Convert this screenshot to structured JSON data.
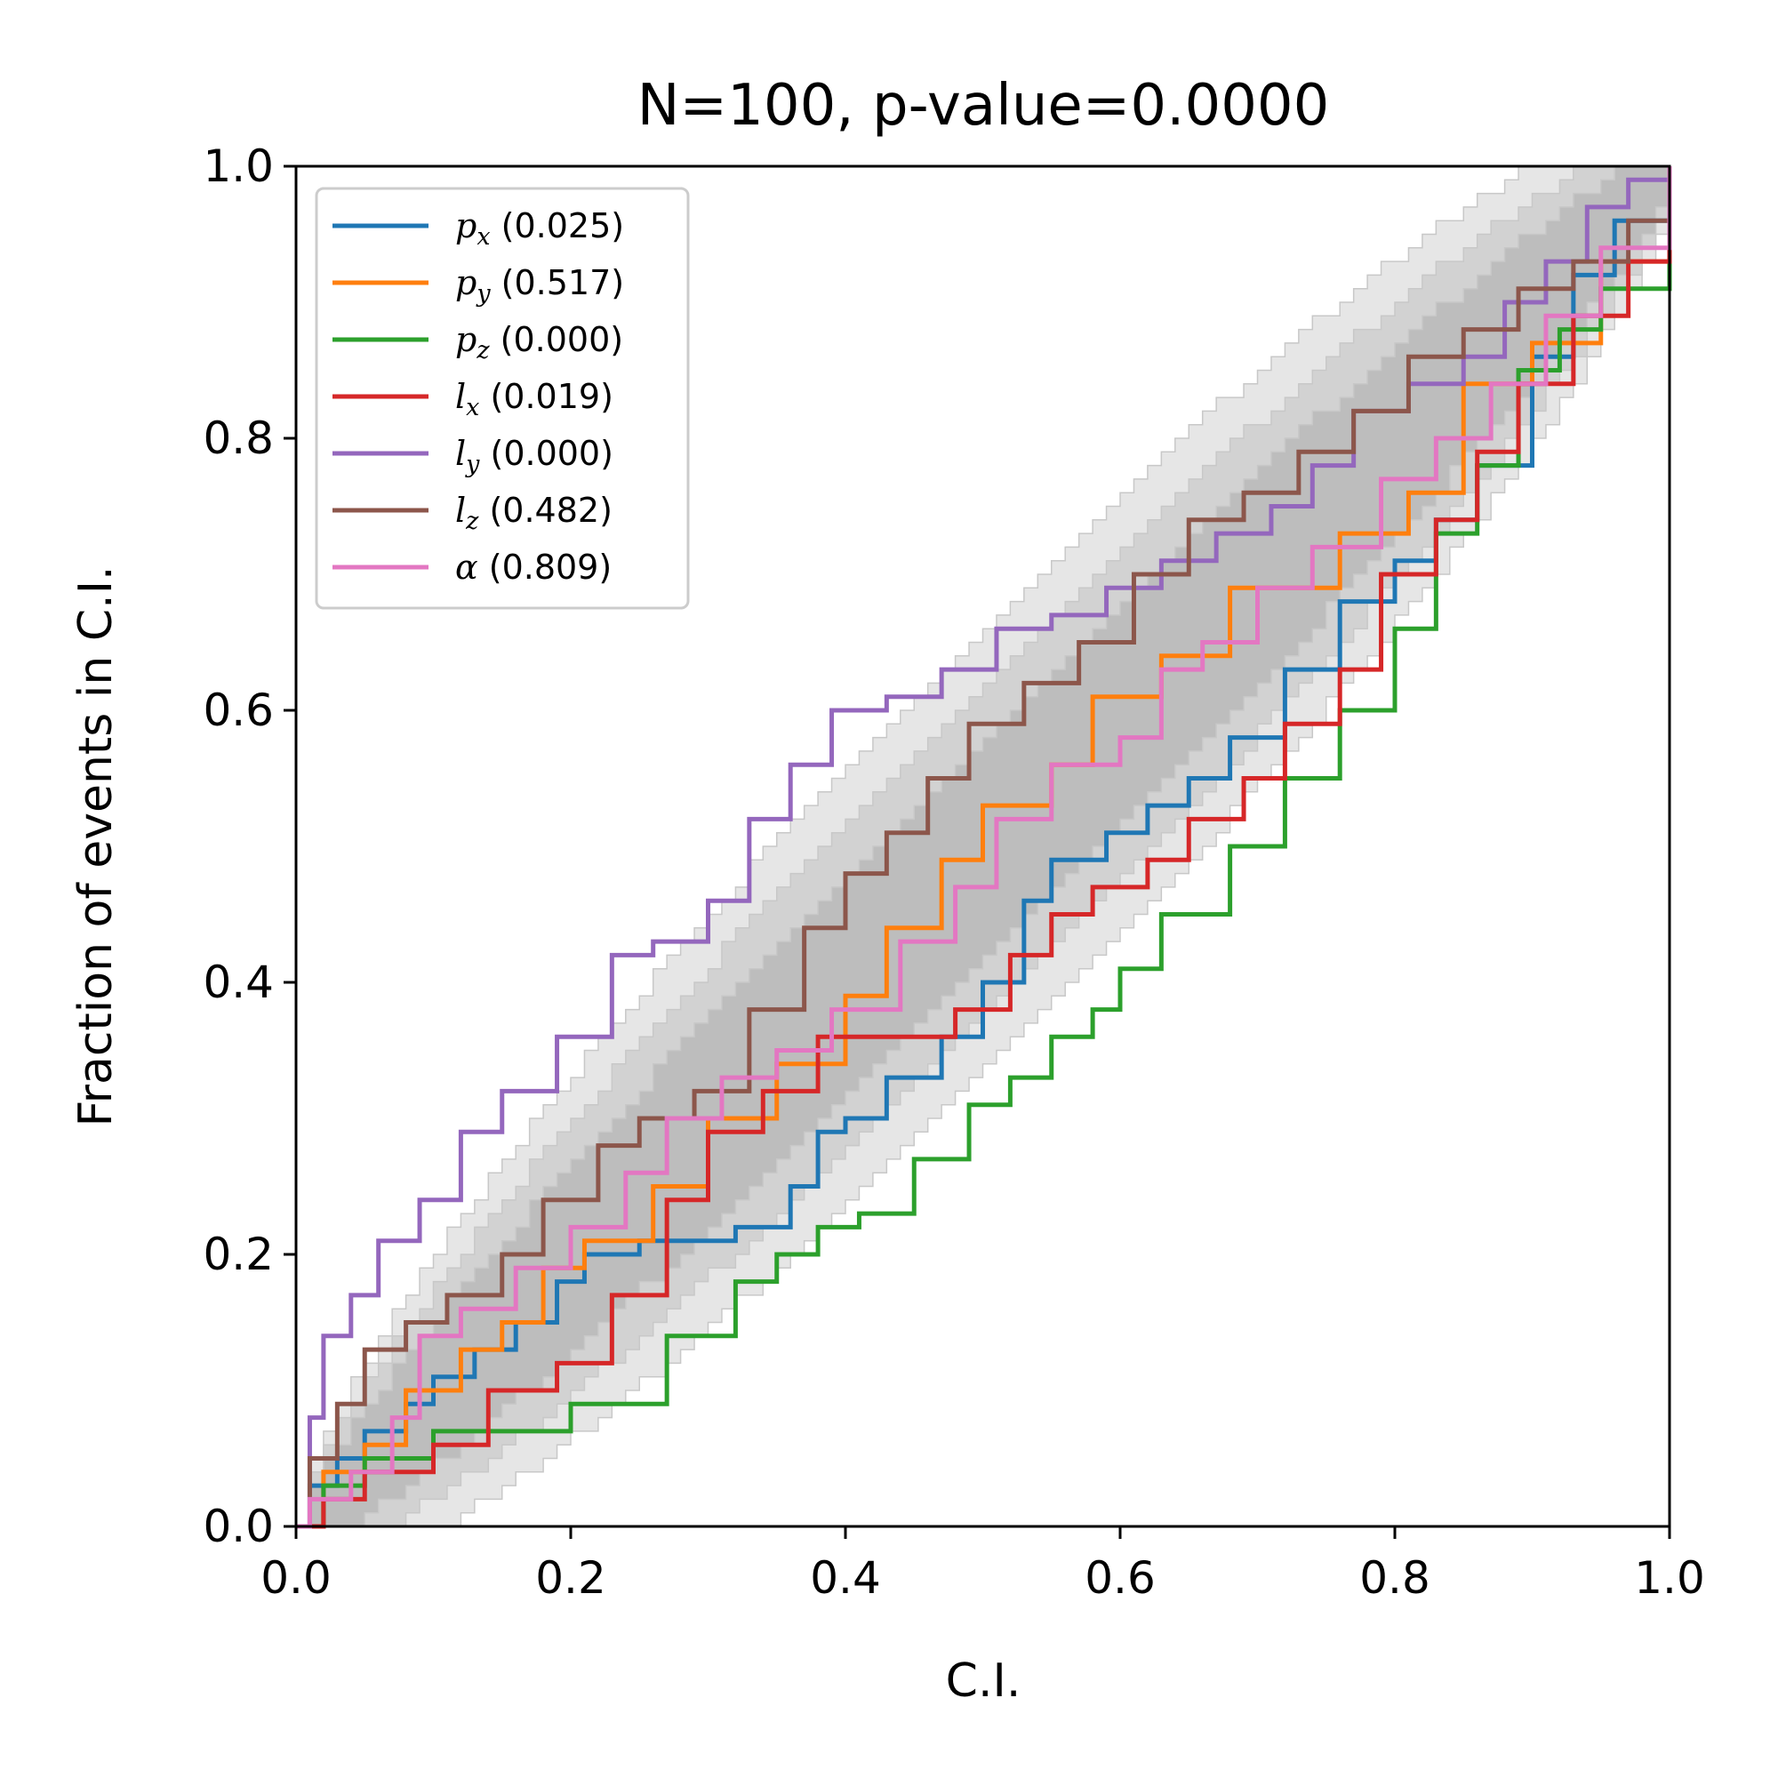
{
  "chart_data": {
    "type": "line",
    "title": "N=100, p-value=0.0000",
    "xlabel": "C.I.",
    "ylabel": "Fraction of events in C.I.",
    "xlim": [
      0,
      1
    ],
    "ylim": [
      0,
      1
    ],
    "xticks": [
      "0.0",
      "0.2",
      "0.4",
      "0.6",
      "0.8",
      "1.0"
    ],
    "yticks": [
      "0.0",
      "0.2",
      "0.4",
      "0.6",
      "0.8",
      "1.0"
    ],
    "grid": false,
    "legend_position": "top-left",
    "confidence_bands": [
      {
        "level": "outer",
        "color": "#e6e6e6",
        "half_width_peak": 0.16
      },
      {
        "level": "middle",
        "color": "#d2d2d2",
        "half_width_peak": 0.12
      },
      {
        "level": "inner",
        "color": "#bdbdbd",
        "half_width_peak": 0.08
      }
    ],
    "series": [
      {
        "symbol": "p",
        "sub": "x",
        "pvalue": "(0.025)",
        "color": "#1f77b4",
        "x": [
          0,
          0.01,
          0.03,
          0.05,
          0.08,
          0.1,
          0.13,
          0.16,
          0.19,
          0.21,
          0.25,
          0.32,
          0.36,
          0.38,
          0.4,
          0.43,
          0.47,
          0.5,
          0.53,
          0.55,
          0.59,
          0.62,
          0.65,
          0.68,
          0.72,
          0.76,
          0.8,
          0.83,
          0.86,
          0.9,
          0.93,
          0.96,
          1.0
        ],
        "y": [
          0,
          0.03,
          0.05,
          0.07,
          0.09,
          0.11,
          0.13,
          0.15,
          0.18,
          0.2,
          0.21,
          0.22,
          0.25,
          0.29,
          0.3,
          0.33,
          0.36,
          0.4,
          0.46,
          0.49,
          0.51,
          0.53,
          0.55,
          0.58,
          0.63,
          0.68,
          0.71,
          0.74,
          0.78,
          0.86,
          0.92,
          0.96,
          1.0
        ]
      },
      {
        "symbol": "p",
        "sub": "y",
        "pvalue": "(0.517)",
        "color": "#ff7f0e",
        "x": [
          0,
          0.02,
          0.05,
          0.08,
          0.12,
          0.15,
          0.18,
          0.21,
          0.26,
          0.3,
          0.35,
          0.4,
          0.43,
          0.47,
          0.5,
          0.55,
          0.58,
          0.63,
          0.68,
          0.72,
          0.76,
          0.81,
          0.85,
          0.9,
          0.95,
          1.0
        ],
        "y": [
          0,
          0.04,
          0.06,
          0.1,
          0.13,
          0.15,
          0.19,
          0.21,
          0.25,
          0.3,
          0.34,
          0.39,
          0.44,
          0.49,
          0.53,
          0.56,
          0.61,
          0.64,
          0.69,
          0.69,
          0.73,
          0.76,
          0.84,
          0.87,
          0.93,
          1.0
        ]
      },
      {
        "symbol": "p",
        "sub": "z",
        "pvalue": "(0.000)",
        "color": "#2ca02c",
        "x": [
          0,
          0.02,
          0.05,
          0.1,
          0.2,
          0.27,
          0.32,
          0.35,
          0.38,
          0.41,
          0.45,
          0.49,
          0.52,
          0.55,
          0.58,
          0.6,
          0.63,
          0.68,
          0.72,
          0.76,
          0.8,
          0.83,
          0.86,
          0.89,
          0.92,
          0.95,
          1.0
        ],
        "y": [
          0,
          0.03,
          0.05,
          0.07,
          0.09,
          0.14,
          0.18,
          0.2,
          0.22,
          0.23,
          0.27,
          0.31,
          0.33,
          0.36,
          0.38,
          0.41,
          0.45,
          0.5,
          0.55,
          0.6,
          0.66,
          0.73,
          0.78,
          0.85,
          0.88,
          0.91,
          0.98
        ]
      },
      {
        "symbol": "l",
        "sub": "x",
        "pvalue": "(0.019)",
        "color": "#d62728",
        "x": [
          0,
          0.02,
          0.05,
          0.1,
          0.14,
          0.19,
          0.23,
          0.27,
          0.3,
          0.34,
          0.38,
          0.42,
          0.48,
          0.52,
          0.55,
          0.58,
          0.62,
          0.65,
          0.69,
          0.72,
          0.76,
          0.79,
          0.83,
          0.86,
          0.89,
          0.93,
          0.97,
          1.0
        ],
        "y": [
          0,
          0.02,
          0.04,
          0.06,
          0.1,
          0.12,
          0.17,
          0.24,
          0.29,
          0.32,
          0.36,
          0.36,
          0.38,
          0.42,
          0.45,
          0.47,
          0.49,
          0.52,
          0.55,
          0.59,
          0.63,
          0.7,
          0.74,
          0.79,
          0.84,
          0.89,
          0.93,
          0.98
        ]
      },
      {
        "symbol": "l",
        "sub": "y",
        "pvalue": "(0.000)",
        "color": "#9467bd",
        "x": [
          0,
          0.01,
          0.02,
          0.04,
          0.06,
          0.09,
          0.12,
          0.15,
          0.19,
          0.23,
          0.26,
          0.3,
          0.33,
          0.36,
          0.39,
          0.43,
          0.47,
          0.51,
          0.55,
          0.59,
          0.63,
          0.67,
          0.71,
          0.74,
          0.77,
          0.81,
          0.85,
          0.88,
          0.91,
          0.94,
          0.97,
          1.0
        ],
        "y": [
          0,
          0.08,
          0.14,
          0.17,
          0.21,
          0.24,
          0.29,
          0.32,
          0.36,
          0.42,
          0.43,
          0.46,
          0.52,
          0.56,
          0.6,
          0.61,
          0.63,
          0.66,
          0.67,
          0.69,
          0.71,
          0.73,
          0.75,
          0.78,
          0.82,
          0.84,
          0.86,
          0.9,
          0.93,
          0.97,
          0.99,
          1.0
        ]
      },
      {
        "symbol": "l",
        "sub": "z",
        "pvalue": "(0.482)",
        "color": "#8c564b",
        "x": [
          0,
          0.01,
          0.03,
          0.05,
          0.08,
          0.11,
          0.15,
          0.18,
          0.22,
          0.25,
          0.29,
          0.33,
          0.37,
          0.4,
          0.43,
          0.46,
          0.49,
          0.53,
          0.57,
          0.61,
          0.65,
          0.69,
          0.73,
          0.77,
          0.81,
          0.85,
          0.89,
          0.93,
          0.97,
          1.0
        ],
        "y": [
          0,
          0.05,
          0.09,
          0.13,
          0.15,
          0.17,
          0.2,
          0.24,
          0.28,
          0.3,
          0.32,
          0.38,
          0.44,
          0.48,
          0.51,
          0.55,
          0.59,
          0.62,
          0.65,
          0.7,
          0.74,
          0.76,
          0.79,
          0.82,
          0.86,
          0.88,
          0.91,
          0.93,
          0.96,
          1.0
        ]
      },
      {
        "symbol": "α",
        "sub": "",
        "pvalue": "(0.809)",
        "color": "#e377c2",
        "x": [
          0,
          0.01,
          0.04,
          0.07,
          0.09,
          0.12,
          0.16,
          0.2,
          0.24,
          0.27,
          0.31,
          0.35,
          0.39,
          0.44,
          0.48,
          0.51,
          0.55,
          0.6,
          0.63,
          0.66,
          0.7,
          0.74,
          0.79,
          0.83,
          0.87,
          0.91,
          0.95,
          1.0
        ],
        "y": [
          0,
          0.02,
          0.04,
          0.08,
          0.14,
          0.16,
          0.19,
          0.22,
          0.26,
          0.3,
          0.33,
          0.35,
          0.38,
          0.43,
          0.47,
          0.52,
          0.56,
          0.58,
          0.63,
          0.65,
          0.69,
          0.72,
          0.77,
          0.8,
          0.84,
          0.89,
          0.94,
          1.0
        ]
      }
    ]
  }
}
